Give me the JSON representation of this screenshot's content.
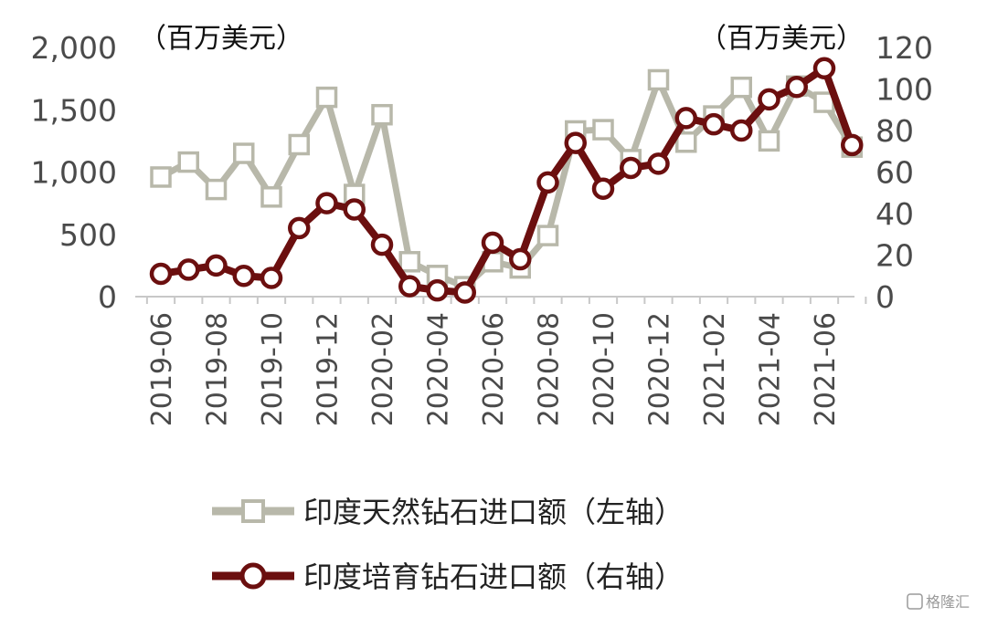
{
  "chart_data": {
    "type": "line",
    "left_unit": "（百万美元）",
    "right_unit": "（百万美元）",
    "x": [
      "2019-06",
      "2019-07",
      "2019-08",
      "2019-09",
      "2019-10",
      "2019-11",
      "2019-12",
      "2020-01",
      "2020-02",
      "2020-03",
      "2020-04",
      "2020-05",
      "2020-06",
      "2020-07",
      "2020-08",
      "2020-09",
      "2020-10",
      "2020-11",
      "2020-12",
      "2021-01",
      "2021-02",
      "2021-03",
      "2021-04",
      "2021-05",
      "2021-06",
      "2021-07"
    ],
    "x_tick_labels": [
      "2019-06",
      "2019-08",
      "2019-10",
      "2019-12",
      "2020-02",
      "2020-04",
      "2020-06",
      "2020-08",
      "2020-10",
      "2020-12",
      "2021-02",
      "2021-04",
      "2021-06"
    ],
    "y_left": {
      "min": 0,
      "max": 2000,
      "ticks": [
        0,
        500,
        1000,
        1500,
        2000
      ],
      "tick_labels": [
        "0",
        "500",
        "1,000",
        "1,500",
        "2,000"
      ]
    },
    "y_right": {
      "min": 0,
      "max": 120,
      "ticks": [
        0,
        20,
        40,
        60,
        80,
        100,
        120
      ],
      "tick_labels": [
        "0",
        "20",
        "40",
        "60",
        "80",
        "100",
        "120"
      ]
    },
    "series": [
      {
        "name": "印度天然钻石进口额（左轴）",
        "axis": "left",
        "color": "#b8b8aa",
        "marker": "square",
        "values": [
          960,
          1080,
          860,
          1150,
          800,
          1220,
          1600,
          820,
          1460,
          280,
          170,
          80,
          280,
          230,
          490,
          1330,
          1340,
          1100,
          1740,
          1240,
          1450,
          1680,
          1250,
          1690,
          1560,
          1200
        ]
      },
      {
        "name": "印度培育钻石进口额（右轴）",
        "axis": "right",
        "color": "#6b0f0f",
        "marker": "circle",
        "values": [
          11,
          13,
          15,
          10,
          9,
          33,
          45,
          42,
          25,
          5,
          3,
          2,
          26,
          18,
          55,
          74,
          52,
          62,
          64,
          86,
          83,
          80,
          95,
          101,
          110,
          73
        ]
      }
    ]
  },
  "watermark": "格隆汇"
}
